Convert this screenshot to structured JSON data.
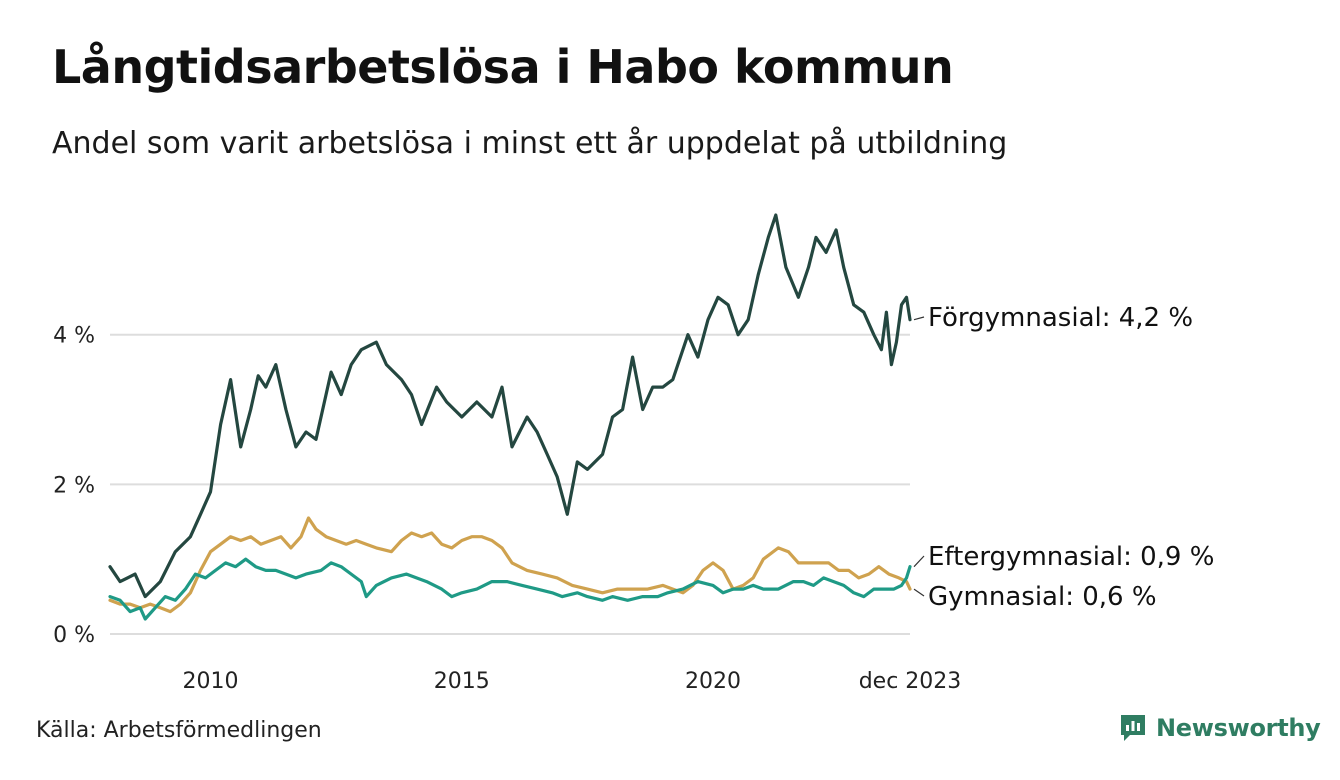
{
  "title": "Långtidsarbetslösa i Habo kommun",
  "subtitle": "Andel som varit arbetslösa i minst ett år uppdelat på utbildning",
  "source": "Källa: Arbetsförmedlingen",
  "brand": {
    "name": "Newsworthy",
    "icon": "newsworthy-logo-icon"
  },
  "colors": {
    "forgymnasial": "#244740",
    "eftergymnasial": "#1f9a86",
    "gymnasial": "#cfa24f",
    "grid": "#dddddd",
    "brand": "#2f7d62"
  },
  "chart_data": {
    "type": "line",
    "title": "Långtidsarbetslösa i Habo kommun",
    "xlabel": "",
    "ylabel": "",
    "ylim": [
      0,
      5.8
    ],
    "xlim": [
      2008.0,
      2023.92
    ],
    "y_ticks": [
      0,
      2,
      4
    ],
    "y_tick_labels": [
      "0 %",
      "2 %",
      "4 %"
    ],
    "x_ticks": [
      2010,
      2015,
      2020,
      2023.92
    ],
    "x_tick_labels": [
      "2010",
      "2015",
      "2020",
      "dec 2023"
    ],
    "grid": true,
    "series": [
      {
        "name": "Förgymnasial",
        "end_label": "Förgymnasial: 4,2 %",
        "color_key": "forgymnasial",
        "points": [
          [
            2008.0,
            0.9
          ],
          [
            2008.2,
            0.7
          ],
          [
            2008.5,
            0.8
          ],
          [
            2008.7,
            0.5
          ],
          [
            2009.0,
            0.7
          ],
          [
            2009.3,
            1.1
          ],
          [
            2009.6,
            1.3
          ],
          [
            2009.8,
            1.6
          ],
          [
            2010.0,
            1.9
          ],
          [
            2010.2,
            2.8
          ],
          [
            2010.4,
            3.4
          ],
          [
            2010.6,
            2.5
          ],
          [
            2010.8,
            3.0
          ],
          [
            2010.95,
            3.45
          ],
          [
            2011.1,
            3.3
          ],
          [
            2011.3,
            3.6
          ],
          [
            2011.5,
            3.0
          ],
          [
            2011.7,
            2.5
          ],
          [
            2011.9,
            2.7
          ],
          [
            2012.1,
            2.6
          ],
          [
            2012.4,
            3.5
          ],
          [
            2012.6,
            3.2
          ],
          [
            2012.8,
            3.6
          ],
          [
            2013.0,
            3.8
          ],
          [
            2013.3,
            3.9
          ],
          [
            2013.5,
            3.6
          ],
          [
            2013.8,
            3.4
          ],
          [
            2014.0,
            3.2
          ],
          [
            2014.2,
            2.8
          ],
          [
            2014.5,
            3.3
          ],
          [
            2014.7,
            3.1
          ],
          [
            2015.0,
            2.9
          ],
          [
            2015.3,
            3.1
          ],
          [
            2015.6,
            2.9
          ],
          [
            2015.8,
            3.3
          ],
          [
            2016.0,
            2.5
          ],
          [
            2016.3,
            2.9
          ],
          [
            2016.5,
            2.7
          ],
          [
            2016.7,
            2.4
          ],
          [
            2016.9,
            2.1
          ],
          [
            2017.1,
            1.6
          ],
          [
            2017.3,
            2.3
          ],
          [
            2017.5,
            2.2
          ],
          [
            2017.8,
            2.4
          ],
          [
            2018.0,
            2.9
          ],
          [
            2018.2,
            3.0
          ],
          [
            2018.4,
            3.7
          ],
          [
            2018.6,
            3.0
          ],
          [
            2018.8,
            3.3
          ],
          [
            2019.0,
            3.3
          ],
          [
            2019.2,
            3.4
          ],
          [
            2019.5,
            4.0
          ],
          [
            2019.7,
            3.7
          ],
          [
            2019.9,
            4.2
          ],
          [
            2020.1,
            4.5
          ],
          [
            2020.3,
            4.4
          ],
          [
            2020.5,
            4.0
          ],
          [
            2020.7,
            4.2
          ],
          [
            2020.9,
            4.8
          ],
          [
            2021.1,
            5.3
          ],
          [
            2021.25,
            5.6
          ],
          [
            2021.45,
            4.9
          ],
          [
            2021.7,
            4.5
          ],
          [
            2021.9,
            4.9
          ],
          [
            2022.05,
            5.3
          ],
          [
            2022.25,
            5.1
          ],
          [
            2022.45,
            5.4
          ],
          [
            2022.6,
            4.9
          ],
          [
            2022.8,
            4.4
          ],
          [
            2023.0,
            4.3
          ],
          [
            2023.2,
            4.0
          ],
          [
            2023.35,
            3.8
          ],
          [
            2023.45,
            4.3
          ],
          [
            2023.55,
            3.6
          ],
          [
            2023.65,
            3.9
          ],
          [
            2023.75,
            4.4
          ],
          [
            2023.85,
            4.5
          ],
          [
            2023.92,
            4.2
          ]
        ]
      },
      {
        "name": "Eftergymnasial",
        "end_label": "Eftergymnasial: 0,9 %",
        "color_key": "eftergymnasial",
        "points": [
          [
            2008.0,
            0.5
          ],
          [
            2008.2,
            0.45
          ],
          [
            2008.4,
            0.3
          ],
          [
            2008.6,
            0.35
          ],
          [
            2008.7,
            0.2
          ],
          [
            2008.9,
            0.35
          ],
          [
            2009.1,
            0.5
          ],
          [
            2009.3,
            0.45
          ],
          [
            2009.5,
            0.6
          ],
          [
            2009.7,
            0.8
          ],
          [
            2009.9,
            0.75
          ],
          [
            2010.1,
            0.85
          ],
          [
            2010.3,
            0.95
          ],
          [
            2010.5,
            0.9
          ],
          [
            2010.7,
            1.0
          ],
          [
            2010.9,
            0.9
          ],
          [
            2011.1,
            0.85
          ],
          [
            2011.3,
            0.85
          ],
          [
            2011.5,
            0.8
          ],
          [
            2011.7,
            0.75
          ],
          [
            2011.9,
            0.8
          ],
          [
            2012.2,
            0.85
          ],
          [
            2012.4,
            0.95
          ],
          [
            2012.6,
            0.9
          ],
          [
            2012.8,
            0.8
          ],
          [
            2013.0,
            0.7
          ],
          [
            2013.1,
            0.5
          ],
          [
            2013.3,
            0.65
          ],
          [
            2013.6,
            0.75
          ],
          [
            2013.9,
            0.8
          ],
          [
            2014.1,
            0.75
          ],
          [
            2014.3,
            0.7
          ],
          [
            2014.6,
            0.6
          ],
          [
            2014.8,
            0.5
          ],
          [
            2015.0,
            0.55
          ],
          [
            2015.3,
            0.6
          ],
          [
            2015.6,
            0.7
          ],
          [
            2015.9,
            0.7
          ],
          [
            2016.2,
            0.65
          ],
          [
            2016.5,
            0.6
          ],
          [
            2016.8,
            0.55
          ],
          [
            2017.0,
            0.5
          ],
          [
            2017.3,
            0.55
          ],
          [
            2017.5,
            0.5
          ],
          [
            2017.8,
            0.45
          ],
          [
            2018.0,
            0.5
          ],
          [
            2018.3,
            0.45
          ],
          [
            2018.6,
            0.5
          ],
          [
            2018.9,
            0.5
          ],
          [
            2019.1,
            0.55
          ],
          [
            2019.4,
            0.6
          ],
          [
            2019.7,
            0.7
          ],
          [
            2020.0,
            0.65
          ],
          [
            2020.2,
            0.55
          ],
          [
            2020.4,
            0.6
          ],
          [
            2020.6,
            0.6
          ],
          [
            2020.8,
            0.65
          ],
          [
            2021.0,
            0.6
          ],
          [
            2021.3,
            0.6
          ],
          [
            2021.6,
            0.7
          ],
          [
            2021.8,
            0.7
          ],
          [
            2022.0,
            0.65
          ],
          [
            2022.2,
            0.75
          ],
          [
            2022.4,
            0.7
          ],
          [
            2022.6,
            0.65
          ],
          [
            2022.8,
            0.55
          ],
          [
            2023.0,
            0.5
          ],
          [
            2023.2,
            0.6
          ],
          [
            2023.4,
            0.6
          ],
          [
            2023.6,
            0.6
          ],
          [
            2023.75,
            0.65
          ],
          [
            2023.85,
            0.75
          ],
          [
            2023.92,
            0.9
          ]
        ]
      },
      {
        "name": "Gymnasial",
        "end_label": "Gymnasial: 0,6 %",
        "color_key": "gymnasial",
        "points": [
          [
            2008.0,
            0.45
          ],
          [
            2008.2,
            0.4
          ],
          [
            2008.4,
            0.4
          ],
          [
            2008.6,
            0.35
          ],
          [
            2008.8,
            0.4
          ],
          [
            2009.0,
            0.35
          ],
          [
            2009.2,
            0.3
          ],
          [
            2009.4,
            0.4
          ],
          [
            2009.6,
            0.55
          ],
          [
            2009.8,
            0.85
          ],
          [
            2010.0,
            1.1
          ],
          [
            2010.2,
            1.2
          ],
          [
            2010.4,
            1.3
          ],
          [
            2010.6,
            1.25
          ],
          [
            2010.8,
            1.3
          ],
          [
            2011.0,
            1.2
          ],
          [
            2011.2,
            1.25
          ],
          [
            2011.4,
            1.3
          ],
          [
            2011.6,
            1.15
          ],
          [
            2011.8,
            1.3
          ],
          [
            2011.95,
            1.55
          ],
          [
            2012.1,
            1.4
          ],
          [
            2012.3,
            1.3
          ],
          [
            2012.5,
            1.25
          ],
          [
            2012.7,
            1.2
          ],
          [
            2012.9,
            1.25
          ],
          [
            2013.1,
            1.2
          ],
          [
            2013.3,
            1.15
          ],
          [
            2013.6,
            1.1
          ],
          [
            2013.8,
            1.25
          ],
          [
            2014.0,
            1.35
          ],
          [
            2014.2,
            1.3
          ],
          [
            2014.4,
            1.35
          ],
          [
            2014.6,
            1.2
          ],
          [
            2014.8,
            1.15
          ],
          [
            2015.0,
            1.25
          ],
          [
            2015.2,
            1.3
          ],
          [
            2015.4,
            1.3
          ],
          [
            2015.6,
            1.25
          ],
          [
            2015.8,
            1.15
          ],
          [
            2016.0,
            0.95
          ],
          [
            2016.3,
            0.85
          ],
          [
            2016.6,
            0.8
          ],
          [
            2016.9,
            0.75
          ],
          [
            2017.2,
            0.65
          ],
          [
            2017.5,
            0.6
          ],
          [
            2017.8,
            0.55
          ],
          [
            2018.1,
            0.6
          ],
          [
            2018.4,
            0.6
          ],
          [
            2018.7,
            0.6
          ],
          [
            2019.0,
            0.65
          ],
          [
            2019.2,
            0.6
          ],
          [
            2019.4,
            0.55
          ],
          [
            2019.6,
            0.65
          ],
          [
            2019.8,
            0.85
          ],
          [
            2020.0,
            0.95
          ],
          [
            2020.2,
            0.85
          ],
          [
            2020.4,
            0.6
          ],
          [
            2020.6,
            0.65
          ],
          [
            2020.8,
            0.75
          ],
          [
            2021.0,
            1.0
          ],
          [
            2021.3,
            1.15
          ],
          [
            2021.5,
            1.1
          ],
          [
            2021.7,
            0.95
          ],
          [
            2022.0,
            0.95
          ],
          [
            2022.3,
            0.95
          ],
          [
            2022.5,
            0.85
          ],
          [
            2022.7,
            0.85
          ],
          [
            2022.9,
            0.75
          ],
          [
            2023.1,
            0.8
          ],
          [
            2023.3,
            0.9
          ],
          [
            2023.5,
            0.8
          ],
          [
            2023.7,
            0.75
          ],
          [
            2023.85,
            0.7
          ],
          [
            2023.92,
            0.6
          ]
        ]
      }
    ]
  }
}
